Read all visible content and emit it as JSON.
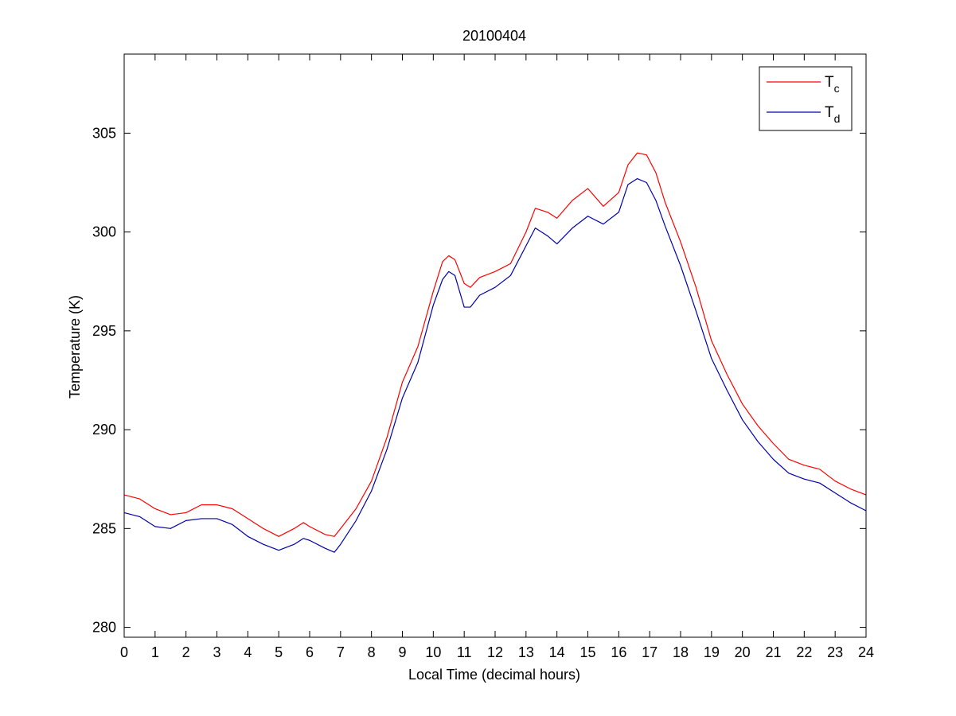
{
  "chart_data": {
    "type": "line",
    "title": "20100404",
    "xlabel": "Local Time (decimal hours)",
    "ylabel": "Temperature (K)",
    "xlim": [
      0,
      24
    ],
    "ylim": [
      279.5,
      309
    ],
    "xticks": [
      0,
      1,
      2,
      3,
      4,
      5,
      6,
      7,
      8,
      9,
      10,
      11,
      12,
      13,
      14,
      15,
      16,
      17,
      18,
      19,
      20,
      21,
      22,
      23,
      24
    ],
    "yticks": [
      280,
      285,
      290,
      295,
      300,
      305
    ],
    "grid": false,
    "legend_position": "top-right",
    "legend": [
      {
        "main": "T",
        "sub": "c"
      },
      {
        "main": "T",
        "sub": "d"
      }
    ],
    "series": [
      {
        "color": "#ff0000",
        "x": [
          0,
          0.5,
          1,
          1.5,
          2,
          2.5,
          3,
          3.5,
          4,
          4.5,
          5,
          5.5,
          5.8,
          6,
          6.5,
          6.8,
          7,
          7.5,
          8,
          8.5,
          9,
          9.5,
          10,
          10.3,
          10.5,
          10.7,
          11,
          11.2,
          11.5,
          12,
          12.5,
          13,
          13.3,
          13.7,
          14,
          14.5,
          15,
          15.5,
          16,
          16.3,
          16.6,
          16.9,
          17.2,
          17.5,
          18,
          18.5,
          19,
          19.5,
          20,
          20.5,
          21,
          21.5,
          22,
          22.5,
          23,
          23.5,
          24
        ],
        "y": [
          286.7,
          286.5,
          286.0,
          285.7,
          285.8,
          286.2,
          286.2,
          286.0,
          285.5,
          285.0,
          284.6,
          285.0,
          285.3,
          285.1,
          284.7,
          284.6,
          285.0,
          286.0,
          287.4,
          289.6,
          292.4,
          294.2,
          297.0,
          298.5,
          298.8,
          298.6,
          297.4,
          297.2,
          297.7,
          298.0,
          298.4,
          300.0,
          301.2,
          301.0,
          300.7,
          301.6,
          302.2,
          301.3,
          302.0,
          303.4,
          304.0,
          303.9,
          303.0,
          301.5,
          299.5,
          297.2,
          294.5,
          292.8,
          291.3,
          290.2,
          289.3,
          288.5,
          288.2,
          288.0,
          287.4,
          287.0,
          286.7
        ]
      },
      {
        "color": "#0000aa",
        "x": [
          0,
          0.5,
          1,
          1.5,
          2,
          2.5,
          3,
          3.5,
          4,
          4.5,
          5,
          5.5,
          5.8,
          6,
          6.5,
          6.8,
          7,
          7.5,
          8,
          8.5,
          9,
          9.5,
          10,
          10.3,
          10.5,
          10.7,
          11,
          11.2,
          11.5,
          12,
          12.5,
          13,
          13.3,
          13.7,
          14,
          14.5,
          15,
          15.5,
          16,
          16.3,
          16.6,
          16.9,
          17.2,
          17.5,
          18,
          18.5,
          19,
          19.5,
          20,
          20.5,
          21,
          21.5,
          22,
          22.5,
          23,
          23.5,
          24
        ],
        "y": [
          285.8,
          285.6,
          285.1,
          285.0,
          285.4,
          285.5,
          285.5,
          285.2,
          284.6,
          284.2,
          283.9,
          284.2,
          284.5,
          284.4,
          284.0,
          283.8,
          284.2,
          285.4,
          286.9,
          289.0,
          291.6,
          293.4,
          296.3,
          297.6,
          298.0,
          297.8,
          296.2,
          296.2,
          296.8,
          297.2,
          297.8,
          299.3,
          300.2,
          299.8,
          299.4,
          300.2,
          300.8,
          300.4,
          301.0,
          302.4,
          302.7,
          302.5,
          301.6,
          300.3,
          298.3,
          296.0,
          293.6,
          292.0,
          290.5,
          289.4,
          288.5,
          287.8,
          287.5,
          287.3,
          286.8,
          286.3,
          285.9
        ]
      }
    ]
  }
}
